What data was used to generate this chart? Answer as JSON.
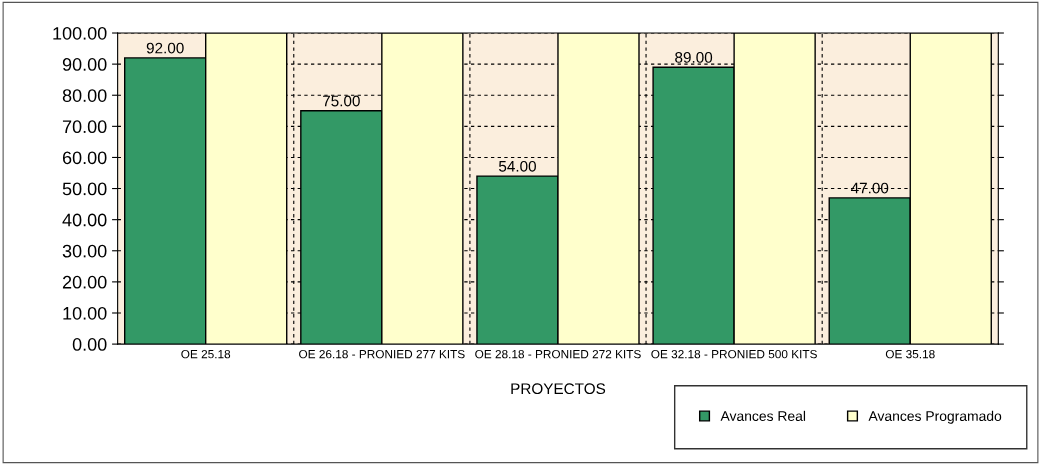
{
  "chart_data": {
    "type": "bar",
    "xlabel": "PROYECTOS",
    "categories": [
      "OE 25.18",
      "OE 26.18 - PRONIED 277 KITS",
      "OE 28.18 - PRONIED 272 KITS",
      "OE 32.18 - PRONIED 500 KITS",
      "OE 35.18"
    ],
    "series": [
      {
        "name": "Avances Real",
        "color": "#339966",
        "values": [
          92,
          75,
          54,
          89,
          47
        ],
        "value_labels": [
          "92.00",
          "75.00",
          "54.00",
          "89.00",
          "47.00"
        ]
      },
      {
        "name": "Avances Programado",
        "color": "#ffffcc",
        "values": [
          100,
          100,
          100,
          100,
          100
        ]
      }
    ],
    "ylim": [
      0,
      100
    ],
    "yticks": [
      {
        "value": 0,
        "label": "0.00"
      },
      {
        "value": 10,
        "label": "10.00"
      },
      {
        "value": 20,
        "label": "20.00"
      },
      {
        "value": 30,
        "label": "30.00"
      },
      {
        "value": 40,
        "label": "40.00"
      },
      {
        "value": 50,
        "label": "50.00"
      },
      {
        "value": 60,
        "label": "60.00"
      },
      {
        "value": 70,
        "label": "70.00"
      },
      {
        "value": 80,
        "label": "80.00"
      },
      {
        "value": 90,
        "label": "90.00"
      },
      {
        "value": 100,
        "label": "100.00"
      }
    ],
    "bands": [
      {
        "axis": "y",
        "from": 0,
        "to": 100,
        "color": "#fbeedd"
      }
    ],
    "grid": true,
    "legend": "bottom right"
  }
}
